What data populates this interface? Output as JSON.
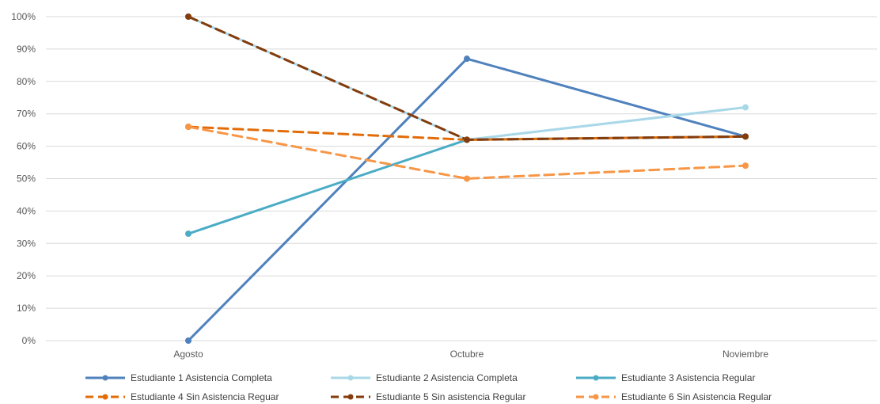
{
  "chart_data": {
    "type": "line",
    "categories": [
      "Agosto",
      "Octubre",
      "Noviembre"
    ],
    "ylim": [
      0,
      100
    ],
    "yticks": [
      "0%",
      "10%",
      "20%",
      "30%",
      "40%",
      "50%",
      "60%",
      "70%",
      "80%",
      "90%",
      "100%"
    ],
    "grid": true,
    "legend_position": "bottom",
    "series": [
      {
        "name": "Estudiante 1 Asistencia Completa",
        "values": [
          0,
          87,
          63
        ],
        "color": "#4F81BD",
        "dash": false
      },
      {
        "name": "Estudiante 2 Asistencia Completa",
        "values": [
          100,
          62,
          72
        ],
        "color": "#A9D8E8",
        "dash": false
      },
      {
        "name": "Estudiante 3 Asistencia Regular",
        "values": [
          33,
          62,
          63
        ],
        "color": "#4BACC6",
        "dash": false
      },
      {
        "name": "Estudiante 4 Sin Asistencia Reguar",
        "values": [
          66,
          62,
          63
        ],
        "color": "#E36C09",
        "dash": true
      },
      {
        "name": "Estudiante 5 Sin asistencia Regular",
        "values": [
          100,
          62,
          63
        ],
        "color": "#843C0C",
        "dash": true
      },
      {
        "name": "Estudiante 6 Sin Asistencia Regular",
        "values": [
          66,
          50,
          54
        ],
        "color": "#F79646",
        "dash": true
      }
    ]
  }
}
